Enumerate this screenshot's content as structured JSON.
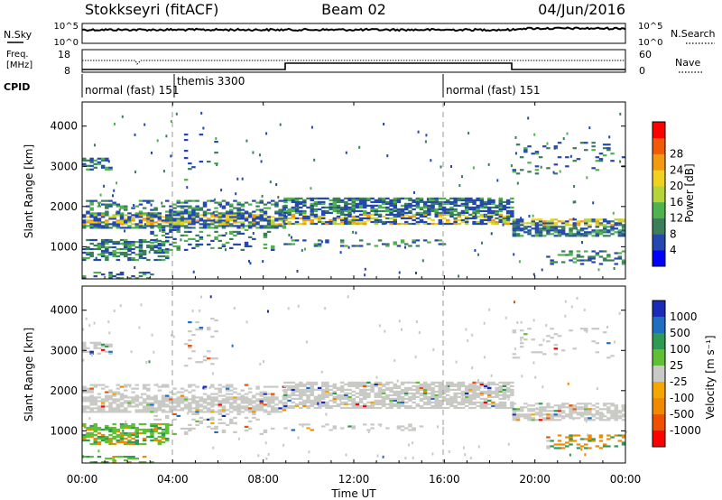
{
  "header": {
    "station": "Stokkseyri (fitACF)",
    "beam": "Beam 02",
    "date": "04/Jun/2016"
  },
  "noise_panel": {
    "left_label": "N.Sky",
    "right_label": "N.Search",
    "left_ticks": [
      "10^5",
      "10^0"
    ],
    "right_ticks": [
      "10^5",
      "10^0"
    ]
  },
  "freq_panel": {
    "left_label_1": "Freq.",
    "left_label_2": "[MHz]",
    "right_label": "Nave",
    "left_ticks": [
      "18",
      "8"
    ],
    "right_ticks": [
      "60",
      "0"
    ]
  },
  "cpid_panel": {
    "label": "CPID",
    "programs": [
      {
        "name": "normal (fast) 151",
        "start_hour": 0
      },
      {
        "name": "themis 3300",
        "start_hour": 4.1
      },
      {
        "name": "normal (fast) 151",
        "start_hour": 16
      }
    ]
  },
  "chart_data": [
    {
      "type": "heatmap",
      "name": "power",
      "ylabel": "Slant Range [km]",
      "yticks": [
        "1000",
        "2000",
        "3000",
        "4000"
      ],
      "ylim": [
        200,
        4600
      ],
      "xlim": [
        0,
        24
      ],
      "colorbar_label": "Power [dB]",
      "colorbar_ticks": [
        "4",
        "8",
        "12",
        "16",
        "20",
        "24",
        "28"
      ],
      "colorbar_colors": [
        "#0000ff",
        "#2448b0",
        "#3a7e5a",
        "#4fb34d",
        "#b7d33a",
        "#f0d21e",
        "#f29a10",
        "#f05a08",
        "#ff0000"
      ]
    },
    {
      "type": "heatmap",
      "name": "velocity",
      "ylabel": "Slant Range [km]",
      "yticks": [
        "1000",
        "2000",
        "3000",
        "4000"
      ],
      "ylim": [
        200,
        4600
      ],
      "xlim": [
        0,
        24
      ],
      "colorbar_label": "Velocity [m s⁻¹]",
      "colorbar_ticks": [
        "1000",
        "500",
        "100",
        "25",
        "-25",
        "-100",
        "-500",
        "-1000"
      ],
      "colorbar_colors": [
        "#1a2bb8",
        "#1e6fc2",
        "#2f9a53",
        "#60c033",
        "#c9c9c5",
        "#f5a700",
        "#f28a00",
        "#f05000",
        "#ff0000"
      ]
    }
  ],
  "xaxis": {
    "label": "Time UT",
    "ticks": [
      "00:00",
      "04:00",
      "08:00",
      "12:00",
      "16:00",
      "20:00",
      "00:00"
    ]
  },
  "colors": {
    "power_band": "#3a9a4a",
    "velocity_ground": "#c9c9c5"
  }
}
